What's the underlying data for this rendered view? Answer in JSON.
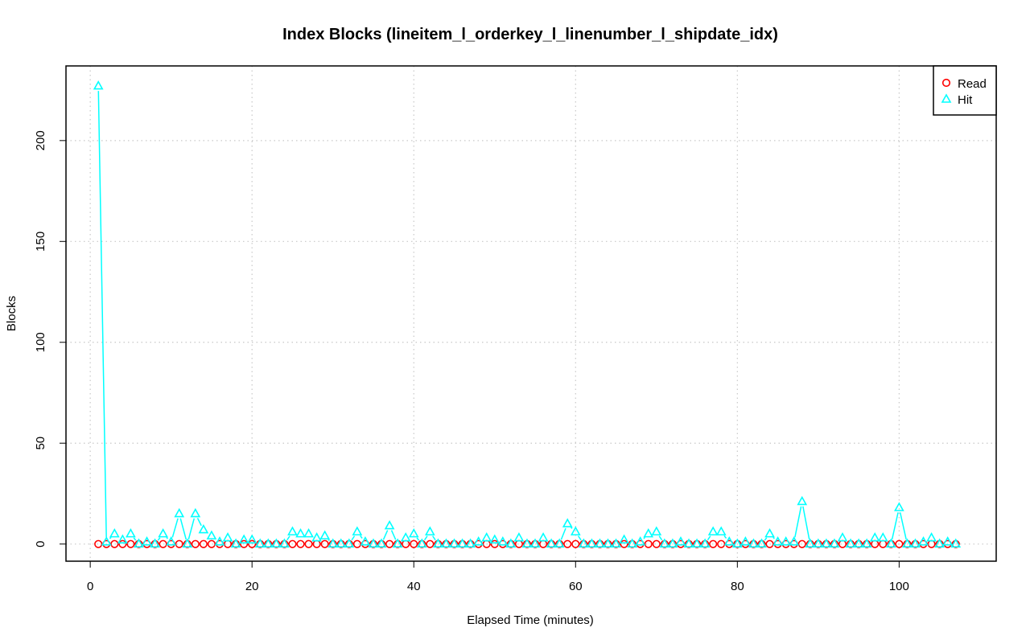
{
  "chart_data": {
    "type": "line",
    "title": "Index Blocks (lineitem_l_orderkey_l_linenumber_l_shipdate_idx)",
    "xlabel": "Elapsed Time (minutes)",
    "ylabel": "Blocks",
    "xlim": [
      -3,
      112
    ],
    "ylim": [
      -8.5,
      237
    ],
    "xticks": [
      0,
      20,
      40,
      60,
      80,
      100
    ],
    "yticks": [
      0,
      50,
      100,
      150,
      200
    ],
    "grid": true,
    "legend_position": "top-right",
    "series": [
      {
        "name": "Read",
        "color": "#ff0000",
        "marker": "circle",
        "line": false,
        "x": [
          1,
          2,
          3,
          4,
          5,
          6,
          7,
          8,
          9,
          10,
          11,
          12,
          13,
          14,
          15,
          16,
          17,
          18,
          19,
          20,
          21,
          22,
          23,
          24,
          25,
          26,
          27,
          28,
          29,
          30,
          31,
          32,
          33,
          34,
          35,
          36,
          37,
          38,
          39,
          40,
          41,
          42,
          43,
          44,
          45,
          46,
          47,
          48,
          49,
          50,
          51,
          52,
          53,
          54,
          55,
          56,
          57,
          58,
          59,
          60,
          61,
          62,
          63,
          64,
          65,
          66,
          67,
          68,
          69,
          70,
          71,
          72,
          73,
          74,
          75,
          76,
          77,
          78,
          79,
          80,
          81,
          82,
          83,
          84,
          85,
          86,
          87,
          88,
          89,
          90,
          91,
          92,
          93,
          94,
          95,
          96,
          97,
          98,
          99,
          100,
          101,
          102,
          103,
          104,
          105,
          106,
          107
        ],
        "y": [
          0,
          0,
          0,
          0,
          0,
          0,
          0,
          0,
          0,
          0,
          0,
          0,
          0,
          0,
          0,
          0,
          0,
          0,
          0,
          0,
          0,
          0,
          0,
          0,
          0,
          0,
          0,
          0,
          0,
          0,
          0,
          0,
          0,
          0,
          0,
          0,
          0,
          0,
          0,
          0,
          0,
          0,
          0,
          0,
          0,
          0,
          0,
          0,
          0,
          0,
          0,
          0,
          0,
          0,
          0,
          0,
          0,
          0,
          0,
          0,
          0,
          0,
          0,
          0,
          0,
          0,
          0,
          0,
          0,
          0,
          0,
          0,
          0,
          0,
          0,
          0,
          0,
          0,
          0,
          0,
          0,
          0,
          0,
          0,
          0,
          0,
          0,
          0,
          0,
          0,
          0,
          0,
          0,
          0,
          0,
          0,
          0,
          0,
          0,
          0,
          0,
          0,
          0,
          0,
          0,
          0,
          0
        ]
      },
      {
        "name": "Hit",
        "color": "#00ffff",
        "marker": "triangle",
        "line": true,
        "x": [
          1,
          2,
          3,
          4,
          5,
          6,
          7,
          8,
          9,
          10,
          11,
          12,
          13,
          14,
          15,
          16,
          17,
          18,
          19,
          20,
          21,
          22,
          23,
          24,
          25,
          26,
          27,
          28,
          29,
          30,
          31,
          32,
          33,
          34,
          35,
          36,
          37,
          38,
          39,
          40,
          41,
          42,
          43,
          44,
          45,
          46,
          47,
          48,
          49,
          50,
          51,
          52,
          53,
          54,
          55,
          56,
          57,
          58,
          59,
          60,
          61,
          62,
          63,
          64,
          65,
          66,
          67,
          68,
          69,
          70,
          71,
          72,
          73,
          74,
          75,
          76,
          77,
          78,
          79,
          80,
          81,
          82,
          83,
          84,
          85,
          86,
          87,
          88,
          89,
          90,
          91,
          92,
          93,
          94,
          95,
          96,
          97,
          98,
          99,
          100,
          101,
          102,
          103,
          104,
          105,
          106,
          107
        ],
        "y": [
          227,
          1,
          5,
          2,
          5,
          0,
          1,
          0,
          5,
          1,
          15,
          0,
          15,
          7,
          4,
          1,
          3,
          0,
          2,
          2,
          0,
          0,
          0,
          0,
          6,
          5,
          5,
          3,
          4,
          0,
          0,
          0,
          6,
          1,
          0,
          0,
          9,
          0,
          3,
          5,
          0,
          6,
          0,
          0,
          0,
          0,
          0,
          1,
          3,
          2,
          1,
          0,
          3,
          0,
          0,
          3,
          0,
          0,
          10,
          6,
          0,
          0,
          0,
          0,
          0,
          2,
          0,
          1,
          5,
          6,
          0,
          0,
          1,
          0,
          0,
          0,
          6,
          6,
          1,
          0,
          1,
          0,
          0,
          5,
          1,
          1,
          1,
          21,
          0,
          0,
          0,
          0,
          3,
          0,
          0,
          0,
          3,
          3,
          0,
          18,
          0,
          0,
          1,
          3,
          0,
          1,
          0
        ]
      }
    ]
  }
}
